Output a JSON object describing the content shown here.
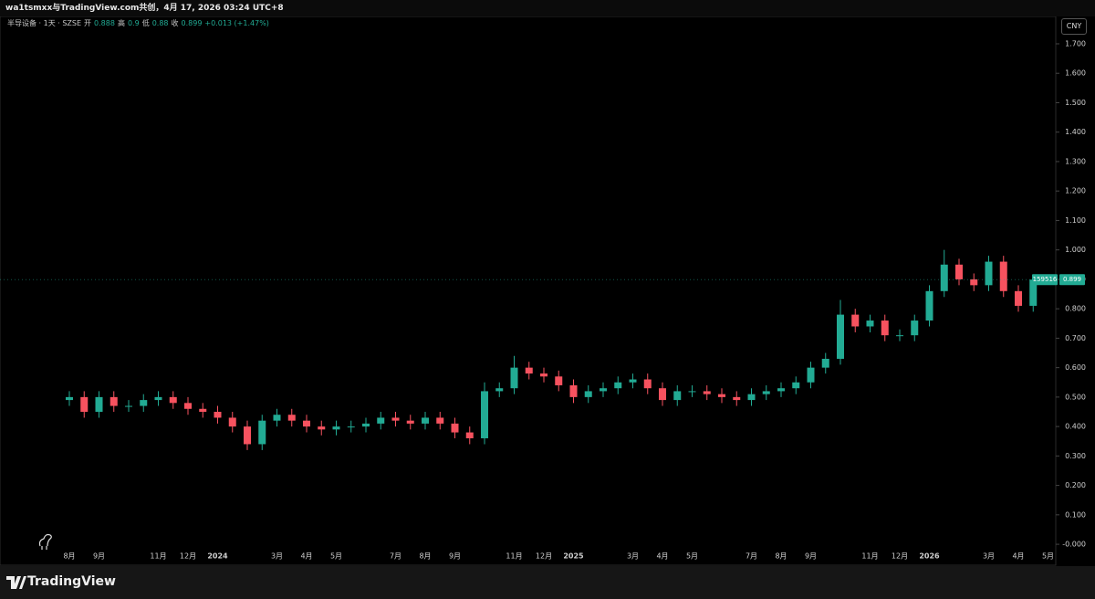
{
  "header": {
    "caption": "wa1tsmxx与TradingView.com共创，4月 17, 2026 03:24 UTC+8"
  },
  "chart_data": {
    "type": "candlestick",
    "title": "半导设备 · 1天 · SZSE",
    "legend": {
      "open_label": "开",
      "open": 0.888,
      "high_label": "高",
      "high": 0.9,
      "low_label": "低",
      "low": 0.88,
      "close_label": "收",
      "close": 0.899,
      "change": "+0.013 (+1.47%)"
    },
    "currency": "CNY",
    "symbol": "159516",
    "last_price": 0.899,
    "up_color": "#22ab94",
    "down_color": "#f7525f",
    "grid": false,
    "categories": [
      "8月",
      null,
      "9月",
      null,
      null,
      null,
      "11月",
      null,
      "12月",
      null,
      "2024",
      null,
      null,
      null,
      "3月",
      null,
      "4月",
      null,
      "5月",
      null,
      null,
      null,
      "7月",
      null,
      "8月",
      null,
      "9月",
      null,
      null,
      null,
      "11月",
      null,
      "12月",
      null,
      "2025",
      null,
      null,
      null,
      "3月",
      null,
      "4月",
      null,
      "5月",
      null,
      null,
      null,
      "7月",
      null,
      "8月",
      null,
      "9月",
      null,
      null,
      null,
      "11月",
      null,
      "12月",
      null,
      "2026",
      null,
      null,
      null,
      "3月",
      null,
      "4月",
      null,
      "5月"
    ],
    "open": [
      0.49,
      0.5,
      0.45,
      0.5,
      0.47,
      0.47,
      0.49,
      0.5,
      0.48,
      0.46,
      0.45,
      0.43,
      0.4,
      0.34,
      0.42,
      0.44,
      0.42,
      0.4,
      0.39,
      0.4,
      0.4,
      0.41,
      0.43,
      0.42,
      0.41,
      0.43,
      0.41,
      0.38,
      0.36,
      0.52,
      0.53,
      0.6,
      0.58,
      0.57,
      0.54,
      0.5,
      0.52,
      0.53,
      0.55,
      0.56,
      0.53,
      0.49,
      0.52,
      0.52,
      0.51,
      0.5,
      0.49,
      0.51,
      0.52,
      0.53,
      0.55,
      0.6,
      0.63,
      0.78,
      0.74,
      0.76,
      0.71,
      0.71,
      0.76,
      0.86,
      0.95,
      0.9,
      0.88,
      0.96,
      0.86,
      0.81,
      null
    ],
    "high": [
      0.52,
      0.52,
      0.52,
      0.52,
      0.49,
      0.51,
      0.52,
      0.52,
      0.5,
      0.48,
      0.47,
      0.45,
      0.42,
      0.44,
      0.46,
      0.46,
      0.44,
      0.42,
      0.42,
      0.42,
      0.43,
      0.45,
      0.45,
      0.44,
      0.45,
      0.45,
      0.43,
      0.4,
      0.55,
      0.55,
      0.64,
      0.62,
      0.6,
      0.59,
      0.56,
      0.54,
      0.55,
      0.57,
      0.58,
      0.58,
      0.55,
      0.54,
      0.54,
      0.54,
      0.53,
      0.52,
      0.53,
      0.54,
      0.55,
      0.57,
      0.62,
      0.65,
      0.83,
      0.8,
      0.78,
      0.78,
      0.73,
      0.78,
      0.88,
      1.0,
      0.97,
      0.92,
      0.98,
      0.98,
      0.88,
      0.91,
      null
    ],
    "low": [
      0.47,
      0.43,
      0.43,
      0.45,
      0.45,
      0.45,
      0.47,
      0.46,
      0.44,
      0.43,
      0.41,
      0.38,
      0.32,
      0.32,
      0.4,
      0.4,
      0.38,
      0.37,
      0.37,
      0.38,
      0.38,
      0.39,
      0.4,
      0.39,
      0.39,
      0.39,
      0.36,
      0.34,
      0.34,
      0.5,
      0.51,
      0.56,
      0.55,
      0.52,
      0.48,
      0.48,
      0.5,
      0.51,
      0.53,
      0.51,
      0.47,
      0.47,
      0.5,
      0.49,
      0.48,
      0.47,
      0.47,
      0.49,
      0.5,
      0.51,
      0.53,
      0.58,
      0.61,
      0.72,
      0.72,
      0.69,
      0.69,
      0.69,
      0.74,
      0.84,
      0.88,
      0.86,
      0.86,
      0.84,
      0.79,
      0.79,
      null
    ],
    "close": [
      0.5,
      0.45,
      0.5,
      0.47,
      0.47,
      0.49,
      0.5,
      0.48,
      0.46,
      0.45,
      0.43,
      0.4,
      0.34,
      0.42,
      0.44,
      0.42,
      0.4,
      0.39,
      0.4,
      0.4,
      0.41,
      0.43,
      0.42,
      0.41,
      0.43,
      0.41,
      0.38,
      0.36,
      0.52,
      0.53,
      0.6,
      0.58,
      0.57,
      0.54,
      0.5,
      0.52,
      0.53,
      0.55,
      0.56,
      0.53,
      0.49,
      0.52,
      0.52,
      0.51,
      0.5,
      0.49,
      0.51,
      0.52,
      0.53,
      0.55,
      0.6,
      0.63,
      0.78,
      0.74,
      0.76,
      0.71,
      0.71,
      0.76,
      0.86,
      0.95,
      0.9,
      0.88,
      0.96,
      0.86,
      0.81,
      0.899,
      null
    ],
    "ylim": [
      -0.068,
      1.793
    ],
    "yticks": [
      {
        "value": 0,
        "label": "-0.000"
      },
      {
        "value": 0.1,
        "label": "0.100"
      },
      {
        "value": 0.2,
        "label": "0.200"
      },
      {
        "value": 0.3,
        "label": "0.300"
      },
      {
        "value": 0.4,
        "label": "0.400"
      },
      {
        "value": 0.5,
        "label": "0.500"
      },
      {
        "value": 0.6,
        "label": "0.600"
      },
      {
        "value": 0.7,
        "label": "0.700"
      },
      {
        "value": 0.8,
        "label": "0.800"
      },
      {
        "value": 0.9,
        "label": "0.900"
      },
      {
        "value": 1.0,
        "label": "1.000"
      },
      {
        "value": 1.1,
        "label": "1.100"
      },
      {
        "value": 1.2,
        "label": "1.200"
      },
      {
        "value": 1.3,
        "label": "1.300"
      },
      {
        "value": 1.4,
        "label": "1.400"
      },
      {
        "value": 1.5,
        "label": "1.500"
      },
      {
        "value": 1.6,
        "label": "1.600"
      },
      {
        "value": 1.7,
        "label": "1.700"
      }
    ]
  },
  "footer": {
    "brand": "TradingView"
  }
}
